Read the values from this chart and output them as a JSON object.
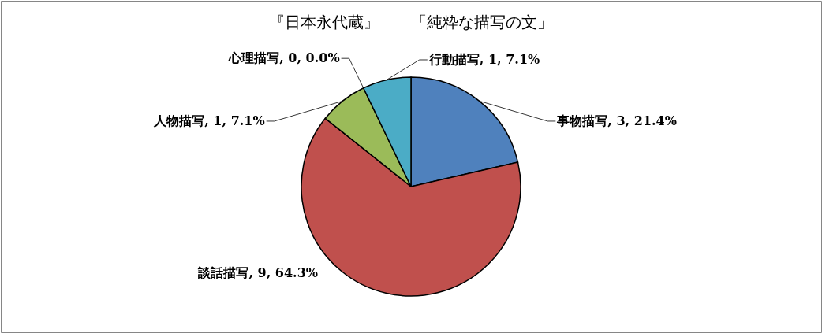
{
  "chart_data": {
    "type": "pie",
    "title": "『日本永代蔵』　　「純粋な描写の文」",
    "categories": [
      "事物描写",
      "談話描写",
      "人物描写",
      "心理描写",
      "行動描写"
    ],
    "values": [
      3,
      9,
      1,
      0,
      1
    ],
    "colors": [
      "#4f81bd",
      "#c0504d",
      "#9bbb59",
      null,
      "#4bacc6"
    ],
    "value_labels": [
      ", 3, 21.4%",
      ", 9, 64.3%",
      ", 1, 7.1%",
      ", 0, 0.0%",
      ", 1, 7.1%"
    ]
  }
}
